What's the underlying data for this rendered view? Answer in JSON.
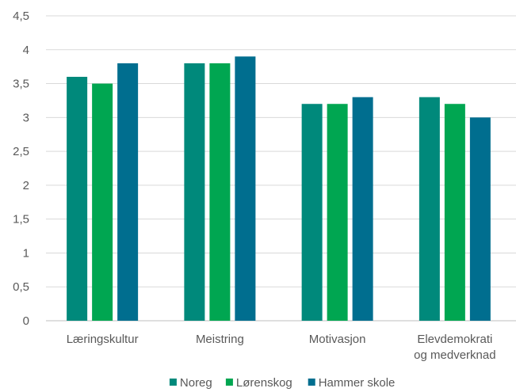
{
  "chart_data": {
    "type": "bar",
    "categories": [
      [
        "Læringskultur"
      ],
      [
        "Meistring"
      ],
      [
        "Motivasjon"
      ],
      [
        "Elevdemokrati",
        "og medverknad"
      ]
    ],
    "series": [
      {
        "name": "Noreg",
        "color": "#00897b",
        "values": [
          3.6,
          3.8,
          3.2,
          3.3
        ]
      },
      {
        "name": "Lørenskog",
        "color": "#00a651",
        "values": [
          3.5,
          3.8,
          3.2,
          3.2
        ]
      },
      {
        "name": "Hammer skole",
        "color": "#006e8f",
        "values": [
          3.8,
          3.9,
          3.3,
          3.0
        ]
      }
    ],
    "yticks": [
      "0",
      "0,5",
      "1",
      "1,5",
      "2",
      "2,5",
      "3",
      "3,5",
      "4",
      "4,5"
    ],
    "ylim": [
      0,
      4.5
    ],
    "grid": true,
    "legend_position": "bottom"
  }
}
